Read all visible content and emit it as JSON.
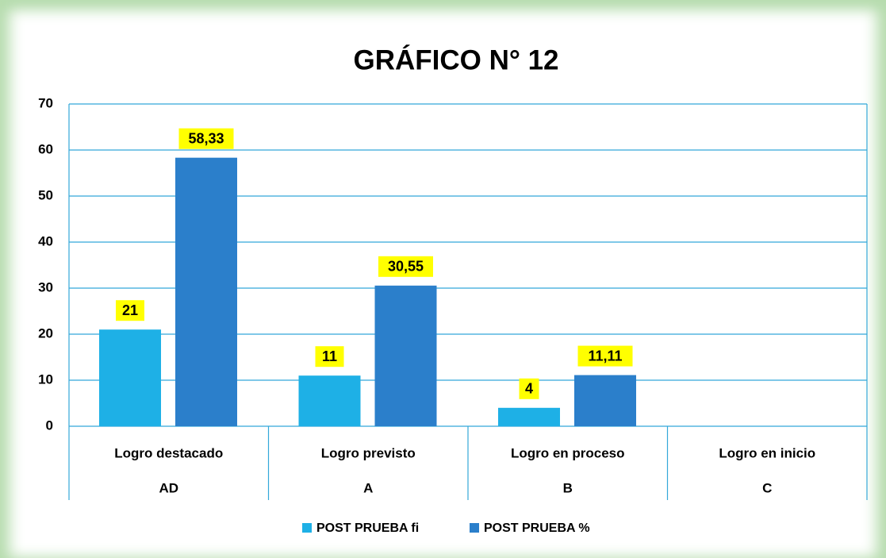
{
  "chart_data": {
    "type": "bar",
    "title": "GRÁFICO N° 12",
    "categories": [
      "Logro destacado",
      "Logro previsto",
      "Logro en proceso",
      "Logro en inicio"
    ],
    "subcategories": [
      "AD",
      "A",
      "B",
      "C"
    ],
    "series": [
      {
        "name": "POST PRUEBA fi",
        "color": "#1eb0e6",
        "values": [
          21,
          11,
          4,
          null
        ]
      },
      {
        "name": "POST PRUEBA %",
        "color": "#2b7fcb",
        "values": [
          58.33,
          30.55,
          11.11,
          null
        ],
        "value_labels": [
          "58,33",
          "30,55",
          "11,11",
          null
        ]
      }
    ],
    "ylim": [
      0,
      70
    ],
    "yticks": [
      0,
      10,
      20,
      30,
      40,
      50,
      60,
      70
    ],
    "grid": true,
    "legend": "bottom",
    "label_background": "#ffff00"
  }
}
